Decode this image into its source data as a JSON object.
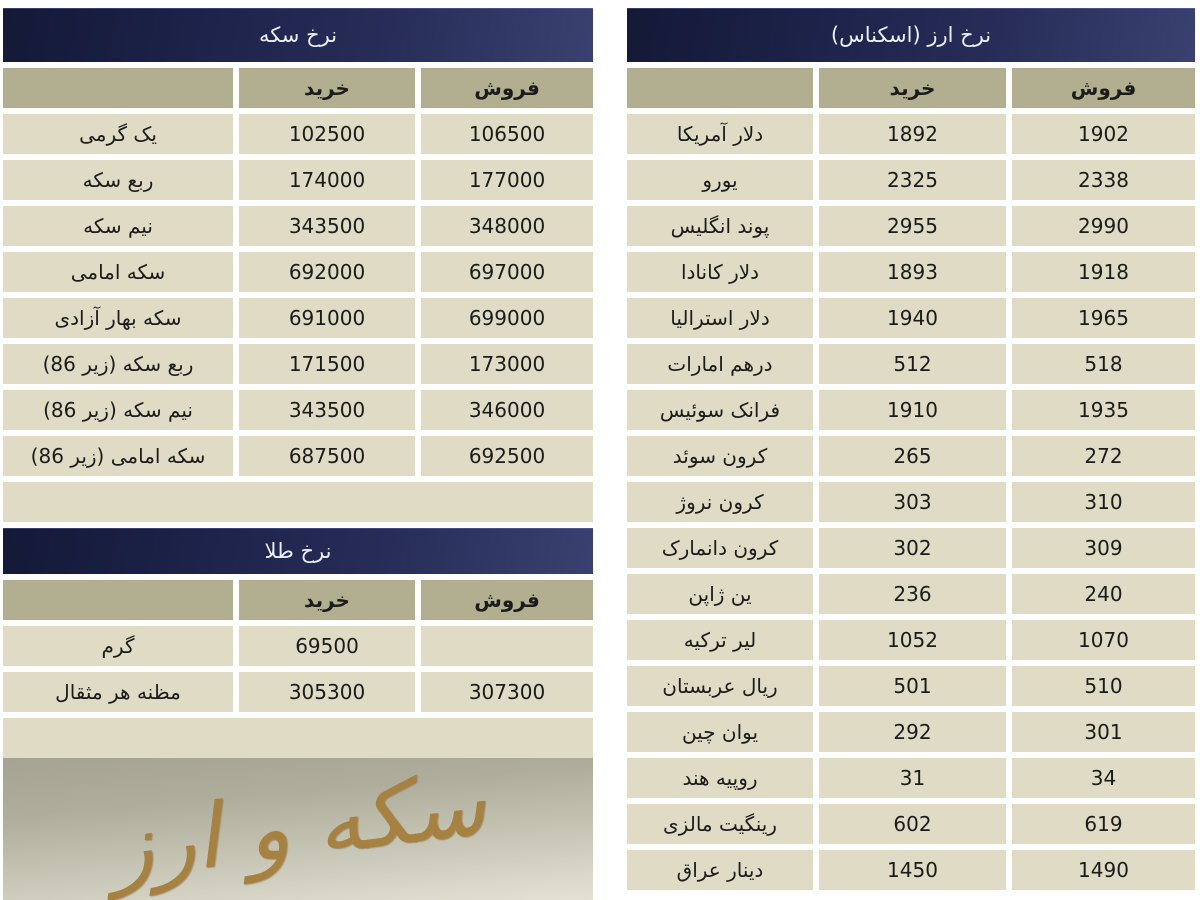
{
  "colors": {
    "title_bar_dark": "#141937",
    "title_bar_light": "#3a4170",
    "title_text": "#eceef8",
    "header_cell": "#b2ae90",
    "data_cell": "#dfdbc5",
    "cell_text": "#1b1b1b",
    "logo_text_color": "#a6813f",
    "logo_bg_top": "#a5a492",
    "logo_bg_bottom": "#e3e2d4"
  },
  "coin_table": {
    "title": "نرخ سکه",
    "columns": {
      "label": "",
      "buy": "خرید",
      "sell": "فروش"
    },
    "rows": [
      {
        "label": "یک گرمی",
        "buy": "102500",
        "sell": "106500"
      },
      {
        "label": "ربع سکه",
        "buy": "174000",
        "sell": "177000"
      },
      {
        "label": "نیم سکه",
        "buy": "343500",
        "sell": "348000"
      },
      {
        "label": "سکه امامی",
        "buy": "692000",
        "sell": "697000"
      },
      {
        "label": "سکه بهار آزادی",
        "buy": "691000",
        "sell": "699000"
      },
      {
        "label": "ربع سکه (زیر 86)",
        "buy": "171500",
        "sell": "173000"
      },
      {
        "label": "نیم سکه (زیر 86)",
        "buy": "343500",
        "sell": "346000"
      },
      {
        "label": "سکه امامی (زیر 86)",
        "buy": "687500",
        "sell": "692500"
      }
    ]
  },
  "gold_table": {
    "title": "نرخ طلا",
    "columns": {
      "label": "",
      "buy": "خرید",
      "sell": "فروش"
    },
    "rows": [
      {
        "label": "گرم",
        "buy": "69500",
        "sell": ""
      },
      {
        "label": "مظنه هر مثقال",
        "buy": "305300",
        "sell": "307300"
      }
    ]
  },
  "currency_table": {
    "title": "نرخ ارز (اسکناس)",
    "columns": {
      "label": "",
      "buy": "خرید",
      "sell": "فروش"
    },
    "rows": [
      {
        "label": "دلار آمریکا",
        "buy": "1892",
        "sell": "1902"
      },
      {
        "label": "یورو",
        "buy": "2325",
        "sell": "2338"
      },
      {
        "label": "پوند انگلیس",
        "buy": "2955",
        "sell": "2990"
      },
      {
        "label": "دلار کانادا",
        "buy": "1893",
        "sell": "1918"
      },
      {
        "label": "دلار استرالیا",
        "buy": "1940",
        "sell": "1965"
      },
      {
        "label": "درهم امارات",
        "buy": "512",
        "sell": "518"
      },
      {
        "label": "فرانک سوئیس",
        "buy": "1910",
        "sell": "1935"
      },
      {
        "label": "کرون سوئد",
        "buy": "265",
        "sell": "272"
      },
      {
        "label": "کرون نروژ",
        "buy": "303",
        "sell": "310"
      },
      {
        "label": "کرون دانمارک",
        "buy": "302",
        "sell": "309"
      },
      {
        "label": "ین ژاپن",
        "buy": "236",
        "sell": "240"
      },
      {
        "label": "لیر ترکیه",
        "buy": "1052",
        "sell": "1070"
      },
      {
        "label": "ریال عربستان",
        "buy": "501",
        "sell": "510"
      },
      {
        "label": "یوان چین",
        "buy": "292",
        "sell": "301"
      },
      {
        "label": "روپیه هند",
        "buy": "31",
        "sell": "34"
      },
      {
        "label": "رینگیت مالزی",
        "buy": "602",
        "sell": "619"
      },
      {
        "label": "دینار عراق",
        "buy": "1450",
        "sell": "1490"
      }
    ]
  },
  "logo": {
    "text": "سکه و ارز"
  }
}
